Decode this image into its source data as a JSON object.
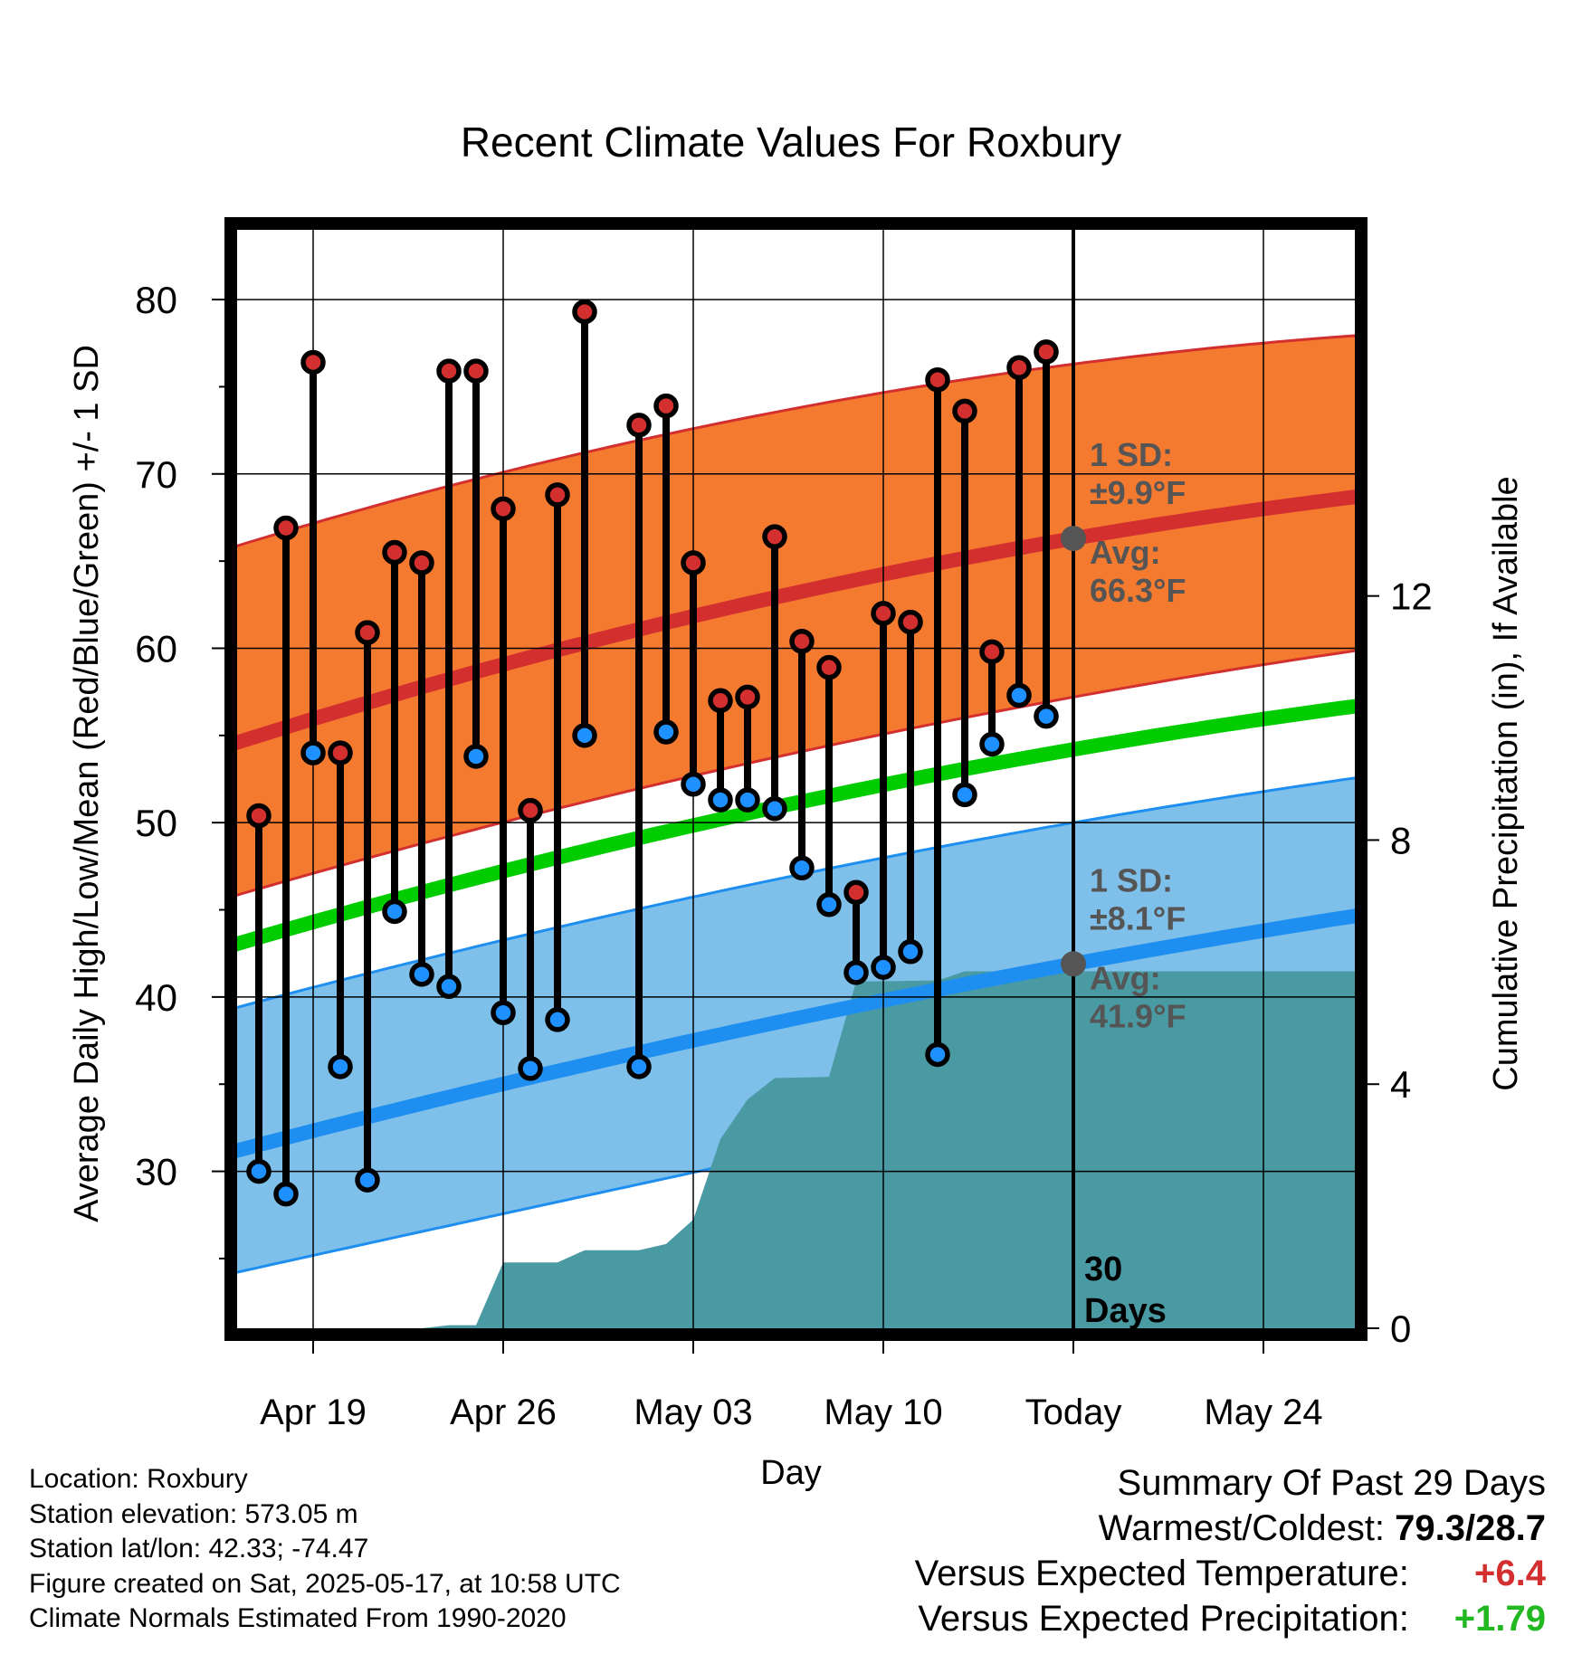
{
  "chart_data": {
    "type": "line",
    "title": "Recent Climate Values For Roxbury",
    "xlabel": "Day",
    "ylabel": "Average Daily High/Low/Mean (Red/Blue/Green) +/- 1 SD",
    "y2label": "Cumulative Precipitation (in), If Available",
    "ylim": [
      21,
      84
    ],
    "y_ticks": [
      30,
      40,
      50,
      60,
      70,
      80
    ],
    "y2lim": [
      0,
      18
    ],
    "y2_ticks": [
      0,
      4,
      8,
      12
    ],
    "x_range": [
      "2025-04-15",
      "2025-05-28"
    ],
    "x_ticks": [
      {
        "date": "2025-04-19",
        "label": "Apr 19"
      },
      {
        "date": "2025-04-26",
        "label": "Apr 26"
      },
      {
        "date": "2025-05-03",
        "label": "May 03"
      },
      {
        "date": "2025-05-10",
        "label": "May 10"
      },
      {
        "date": "2025-05-17",
        "label": "Today"
      },
      {
        "date": "2025-05-24",
        "label": "May 24"
      }
    ],
    "grid": true,
    "today": "2025-05-17",
    "today_label": [
      "30",
      "Days"
    ],
    "colors": {
      "high_band": "#f47a30",
      "high_line": "#d32f2f",
      "low_band": "#7fc0ea",
      "low_line": "#1e8ff0",
      "mean_line": "#00cc00",
      "precip": "#4a9aa4",
      "high_dot": "#d32f2f",
      "low_dot": "#1e90ff",
      "annotation": "#555555"
    },
    "normals": {
      "high_avg": [
        {
          "x": "2025-04-15",
          "y": 54.0
        },
        {
          "x": "2025-05-17",
          "y": 66.3
        },
        {
          "x": "2025-05-28",
          "y": 68.8
        }
      ],
      "high_sd_upper": [
        {
          "x": "2025-04-15",
          "y": 65.3
        },
        {
          "x": "2025-05-17",
          "y": 76.3
        },
        {
          "x": "2025-05-28",
          "y": 78.0
        }
      ],
      "high_sd_lower": [
        {
          "x": "2025-04-15",
          "y": 45.3
        },
        {
          "x": "2025-05-17",
          "y": 57.2
        },
        {
          "x": "2025-05-28",
          "y": 60.0
        }
      ],
      "low_avg": [
        {
          "x": "2025-04-15",
          "y": 30.7
        },
        {
          "x": "2025-05-17",
          "y": 41.9
        },
        {
          "x": "2025-05-28",
          "y": 44.8
        }
      ],
      "low_sd_upper": [
        {
          "x": "2025-04-15",
          "y": 38.9
        },
        {
          "x": "2025-05-17",
          "y": 50.0
        },
        {
          "x": "2025-05-28",
          "y": 52.7
        }
      ],
      "low_sd_lower": [
        {
          "x": "2025-04-15",
          "y": 23.8
        },
        {
          "x": "2025-05-17",
          "y": 34.6
        },
        {
          "x": "2025-05-28",
          "y": 38.2
        }
      ],
      "mean": [
        {
          "x": "2025-04-15",
          "y": 42.5
        },
        {
          "x": "2025-05-17",
          "y": 54.2
        },
        {
          "x": "2025-05-28",
          "y": 56.8
        }
      ]
    },
    "daily": [
      {
        "date": "2025-04-17",
        "high": 50.4,
        "low": 30.0
      },
      {
        "date": "2025-04-18",
        "high": 66.9,
        "low": 28.7
      },
      {
        "date": "2025-04-19",
        "high": 76.4,
        "low": 54.0
      },
      {
        "date": "2025-04-20",
        "high": 54.0,
        "low": 36.0
      },
      {
        "date": "2025-04-21",
        "high": 60.9,
        "low": 29.5
      },
      {
        "date": "2025-04-22",
        "high": 65.5,
        "low": 44.9
      },
      {
        "date": "2025-04-23",
        "high": 64.9,
        "low": 41.3
      },
      {
        "date": "2025-04-24",
        "high": 75.9,
        "low": 40.6
      },
      {
        "date": "2025-04-25",
        "high": 75.9,
        "low": 53.8
      },
      {
        "date": "2025-04-26",
        "high": 68.0,
        "low": 39.1
      },
      {
        "date": "2025-04-27",
        "high": 50.7,
        "low": 35.9
      },
      {
        "date": "2025-04-28",
        "high": 68.8,
        "low": 38.7
      },
      {
        "date": "2025-04-29",
        "high": 79.3,
        "low": 55.0
      },
      {
        "date": "2025-05-01",
        "high": 72.8,
        "low": 36.0
      },
      {
        "date": "2025-05-02",
        "high": 73.9,
        "low": 55.2
      },
      {
        "date": "2025-05-03",
        "high": 64.9,
        "low": 52.2
      },
      {
        "date": "2025-05-04",
        "high": 57.0,
        "low": 51.3
      },
      {
        "date": "2025-05-05",
        "high": 57.2,
        "low": 51.3
      },
      {
        "date": "2025-05-06",
        "high": 66.4,
        "low": 50.8
      },
      {
        "date": "2025-05-07",
        "high": 60.4,
        "low": 47.4
      },
      {
        "date": "2025-05-08",
        "high": 58.9,
        "low": 45.3
      },
      {
        "date": "2025-05-09",
        "high": 46.0,
        "low": 41.4
      },
      {
        "date": "2025-05-10",
        "high": 62.0,
        "low": 41.7
      },
      {
        "date": "2025-05-11",
        "high": 61.5,
        "low": 42.6
      },
      {
        "date": "2025-05-12",
        "high": 75.4,
        "low": 36.7
      },
      {
        "date": "2025-05-13",
        "high": 73.6,
        "low": 51.6
      },
      {
        "date": "2025-05-14",
        "high": 59.8,
        "low": 54.5
      },
      {
        "date": "2025-05-15",
        "high": 76.1,
        "low": 57.3
      },
      {
        "date": "2025-05-16",
        "high": 77.0,
        "low": 56.1
      }
    ],
    "precip_cumulative": [
      {
        "x": "2025-04-15",
        "y": 0.0
      },
      {
        "x": "2025-04-23",
        "y": 0.0
      },
      {
        "x": "2025-04-24",
        "y": 0.05
      },
      {
        "x": "2025-04-25",
        "y": 0.05
      },
      {
        "x": "2025-04-26",
        "y": 1.08
      },
      {
        "x": "2025-04-28",
        "y": 1.08
      },
      {
        "x": "2025-04-29",
        "y": 1.28
      },
      {
        "x": "2025-05-01",
        "y": 1.28
      },
      {
        "x": "2025-05-02",
        "y": 1.38
      },
      {
        "x": "2025-05-03",
        "y": 1.78
      },
      {
        "x": "2025-05-04",
        "y": 3.1
      },
      {
        "x": "2025-05-05",
        "y": 3.75
      },
      {
        "x": "2025-05-06",
        "y": 4.1
      },
      {
        "x": "2025-05-08",
        "y": 4.12
      },
      {
        "x": "2025-05-09",
        "y": 5.68
      },
      {
        "x": "2025-05-12",
        "y": 5.7
      },
      {
        "x": "2025-05-13",
        "y": 5.85
      },
      {
        "x": "2025-05-28",
        "y": 5.85
      }
    ],
    "annotations": {
      "high": {
        "sd_label": "1 SD:",
        "sd_value": "±9.9°F",
        "avg_label": "Avg:",
        "avg_value": "66.3°F",
        "avg": 66.3
      },
      "low": {
        "sd_label": "1 SD:",
        "sd_value": "±8.1°F",
        "avg_label": "Avg:",
        "avg_value": "41.9°F",
        "avg": 41.9
      }
    }
  },
  "footer": {
    "location": "Location: Roxbury",
    "elevation": "Station elevation: 573.05 m",
    "latlon": "Station lat/lon: 42.33; -74.47",
    "created": "Figure created on Sat, 2025-05-17, at 10:58 UTC",
    "normals": "Climate Normals Estimated From 1990-2020"
  },
  "summary": {
    "title": "Summary Of Past 29 Days",
    "warmest_coldest_label": "Warmest/Coldest:",
    "warmest_coldest_value": "79.3/28.7",
    "temp_label": "Versus Expected Temperature:",
    "temp_value": "+6.4",
    "precip_label": "Versus Expected Precipitation:",
    "precip_value": "+1.79"
  }
}
